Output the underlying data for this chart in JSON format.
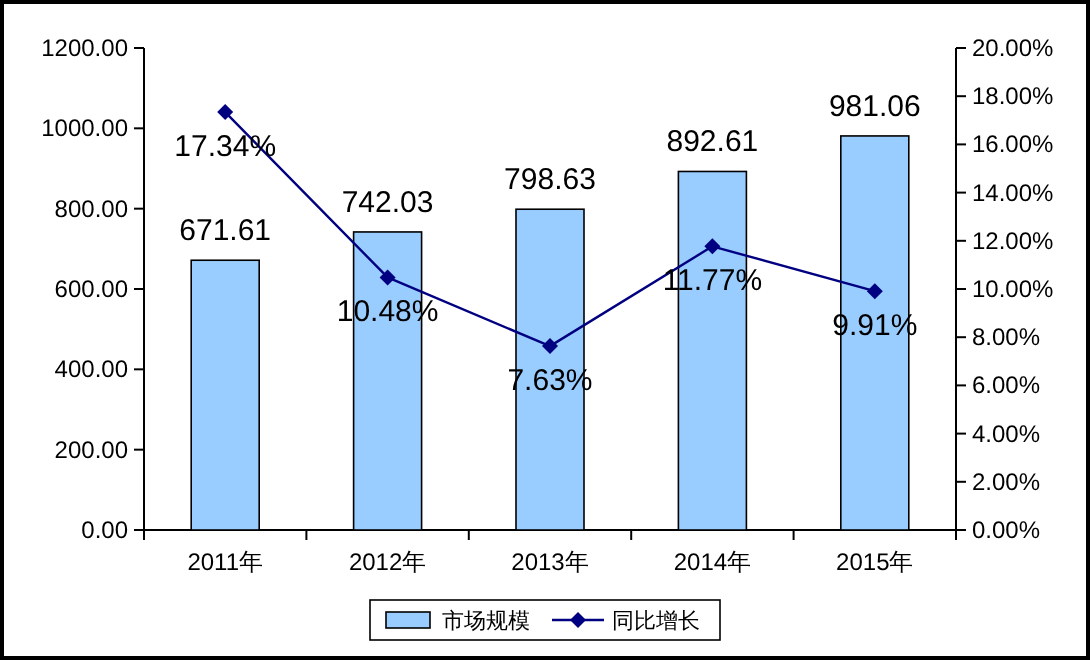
{
  "chart_data": {
    "type": "bar",
    "categories": [
      "2011年",
      "2012年",
      "2013年",
      "2014年",
      "2015年"
    ],
    "series": [
      {
        "name": "市场规模",
        "color": "#99ccff",
        "values": [
          671.61,
          742.03,
          798.63,
          892.61,
          981.06
        ],
        "value_labels": [
          "671.61",
          "742.03",
          "798.63",
          "892.61",
          "981.06"
        ]
      },
      {
        "name": "同比增长",
        "type": "line",
        "axis": "y2",
        "color": "#000080",
        "marker": "diamond",
        "values": [
          17.34,
          10.48,
          7.63,
          11.77,
          9.91
        ],
        "value_labels": [
          "17.34%",
          "10.48%",
          "7.63%",
          "11.77%",
          "9.91%"
        ]
      }
    ],
    "ylim": [
      0,
      1200
    ],
    "yticks": [
      {
        "value": 0,
        "label": "0.00"
      },
      {
        "value": 200,
        "label": "200.00"
      },
      {
        "value": 400,
        "label": "400.00"
      },
      {
        "value": 600,
        "label": "600.00"
      },
      {
        "value": 800,
        "label": "800.00"
      },
      {
        "value": 1000,
        "label": "1000.00"
      },
      {
        "value": 1200,
        "label": "1200.00"
      }
    ],
    "y2lim": [
      0,
      20
    ],
    "y2ticks": [
      {
        "value": 0,
        "label": "0.00%"
      },
      {
        "value": 2,
        "label": "2.00%"
      },
      {
        "value": 4,
        "label": "4.00%"
      },
      {
        "value": 6,
        "label": "6.00%"
      },
      {
        "value": 8,
        "label": "8.00%"
      },
      {
        "value": 10,
        "label": "10.00%"
      },
      {
        "value": 12,
        "label": "12.00%"
      },
      {
        "value": 14,
        "label": "14.00%"
      },
      {
        "value": 16,
        "label": "16.00%"
      },
      {
        "value": 18,
        "label": "18.00%"
      },
      {
        "value": 20,
        "label": "20.00%"
      }
    ],
    "legend": "bottom"
  }
}
